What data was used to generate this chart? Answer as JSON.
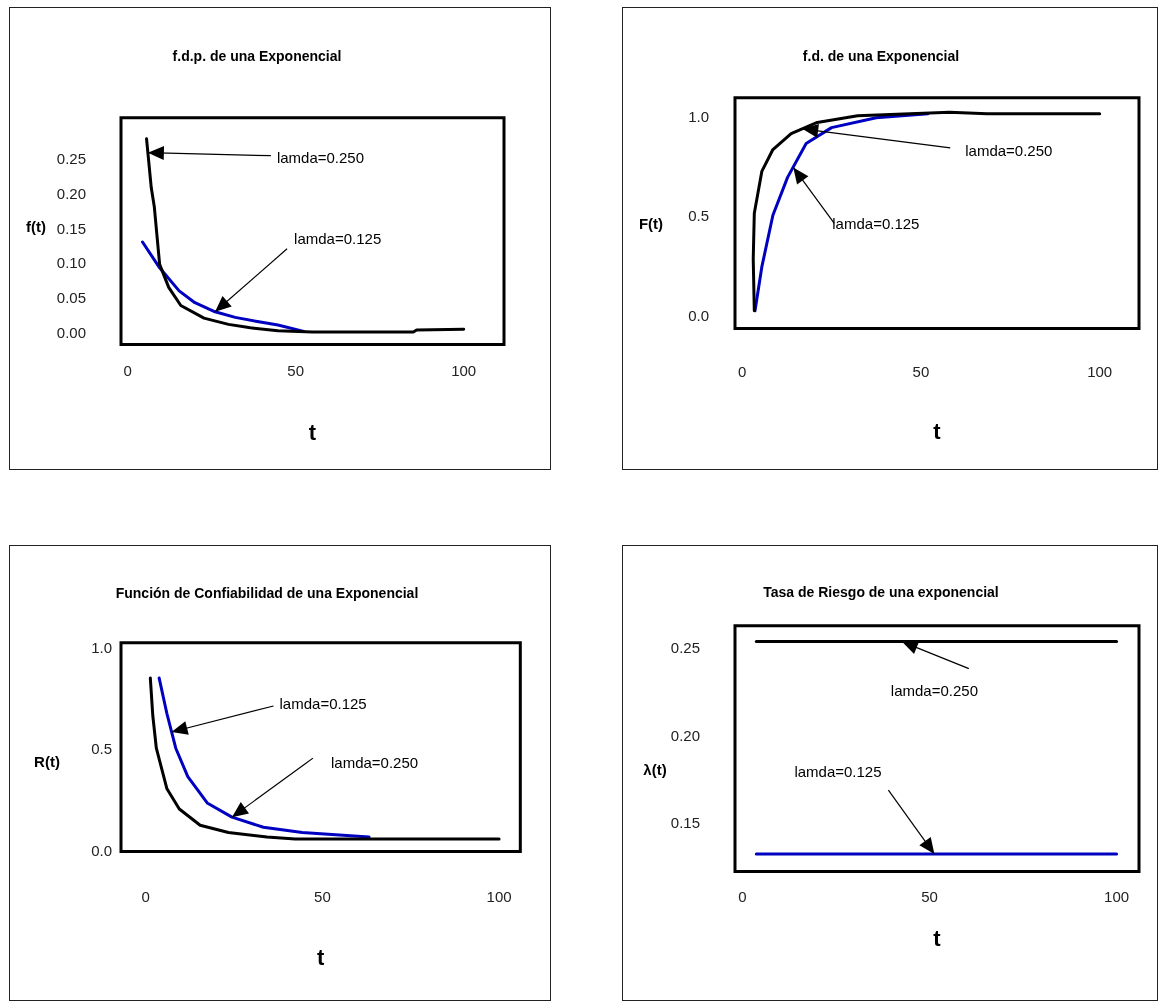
{
  "chart_data": [
    {
      "type": "line",
      "title": "f.d.p. de una Exponencial",
      "xlabel": "t",
      "ylabel": "f(t)",
      "xlim": [
        -2,
        112
      ],
      "ylim": [
        -0.015,
        0.31
      ],
      "xticks": [
        0,
        50,
        100
      ],
      "yticks": [
        {
          "value": 0,
          "label": "0.00"
        },
        0.05,
        {
          "value": 0.1,
          "label": "0.10"
        },
        0.15,
        {
          "value": 0.2,
          "label": "0.20"
        },
        0.25
      ],
      "series": [
        {
          "color": "#000000",
          "x": [
            5.6,
            6,
            7,
            7.9,
            9.5,
            12.2,
            15.8,
            22.7,
            30,
            36.5,
            44.7,
            55,
            85,
            86,
            100
          ],
          "values": [
            0.28,
            0.26,
            0.21,
            0.183,
            0.1,
            0.067,
            0.041,
            0.023,
            0.014,
            0.009,
            0.005,
            0.003,
            0.003,
            0.006,
            0.007
          ]
        },
        {
          "color": "#0000c0",
          "x": [
            4.4,
            9.5,
            15.3,
            20,
            26,
            32,
            38.6,
            44.7,
            52.4
          ],
          "values": [
            0.132,
            0.095,
            0.062,
            0.045,
            0.032,
            0.024,
            0.018,
            0.013,
            0.004
          ]
        }
      ],
      "annotations": [
        {
          "text": "lamda=0.250",
          "x": 6,
          "y": 0.26
        },
        {
          "text": "lamda=0.125",
          "x": 26,
          "y": 0.032
        }
      ]
    },
    {
      "type": "line",
      "title": "f.d. de una Exponencial",
      "xlabel": "t",
      "ylabel": "F(t)",
      "xlim": [
        -2,
        111
      ],
      "ylim": [
        -0.06,
        1.1
      ],
      "xticks": [
        0,
        50,
        100
      ],
      "yticks": [
        {
          "value": 0,
          "label": "0.0"
        },
        0.5,
        {
          "value": 1,
          "label": "1.0"
        }
      ],
      "series": [
        {
          "color": "#000000",
          "x": [
            3.4,
            3.1,
            3.4,
            5.5,
            8.6,
            13.7,
            21,
            32.3,
            58,
            68.5,
            100
          ],
          "values": [
            0.03,
            0.29,
            0.52,
            0.73,
            0.84,
            0.92,
            0.976,
            1.01,
            1.027,
            1.02,
            1.02
          ]
        },
        {
          "color": "#0000c0",
          "x": [
            3.6,
            5.5,
            8.6,
            12.7,
            17.9,
            25,
            37.5,
            52
          ],
          "values": [
            0.03,
            0.25,
            0.51,
            0.7,
            0.87,
            0.95,
            1.0,
            1.02
          ]
        }
      ],
      "annotations": [
        {
          "text": "lamda=0.250",
          "x": 16.8,
          "y": 0.944
        },
        {
          "text": "lamda=0.125",
          "x": 14.3,
          "y": 0.75
        }
      ]
    },
    {
      "type": "line",
      "title": "Función de Confiabilidad de una Exponencial",
      "xlabel": "t",
      "ylabel": "R(t)",
      "xlim": [
        -7,
        106
      ],
      "ylim": [
        0,
        1.03
      ],
      "xticks": [
        0,
        50,
        100
      ],
      "yticks": [
        {
          "value": 0,
          "label": "0.0"
        },
        0.5,
        {
          "value": 1,
          "label": "1.0"
        }
      ],
      "series": [
        {
          "color": "#000000",
          "x": [
            1.3,
            2,
            3,
            6,
            9.5,
            15.4,
            23.4,
            34.3,
            42.3,
            100
          ],
          "values": [
            0.856,
            0.67,
            0.51,
            0.31,
            0.21,
            0.13,
            0.094,
            0.072,
            0.062,
            0.062
          ]
        },
        {
          "color": "#0000c0",
          "x": [
            3.8,
            6,
            8.5,
            11.9,
            17.4,
            24.4,
            33.3,
            44.3,
            63.2
          ],
          "values": [
            0.856,
            0.68,
            0.51,
            0.37,
            0.24,
            0.17,
            0.12,
            0.094,
            0.072
          ]
        }
      ],
      "annotations": [
        {
          "text": "lamda=0.125",
          "x": 7.3,
          "y": 0.59
        },
        {
          "text": "lamda=0.250",
          "x": 24.4,
          "y": 0.17
        }
      ]
    },
    {
      "type": "line",
      "title": "Tasa de Riesgo de una exponencial",
      "xlabel": "t",
      "ylabel": "λ(t)",
      "xlim": [
        -2,
        106
      ],
      "ylim": [
        0.123,
        0.263
      ],
      "xticks": [
        0,
        50,
        100
      ],
      "yticks": [
        0.15,
        {
          "value": 0.2,
          "label": "0.20"
        },
        0.25
      ],
      "series": [
        {
          "color": "#000000",
          "x": [
            3.7,
            100
          ],
          "values": [
            0.254,
            0.254
          ]
        },
        {
          "color": "#0000c0",
          "x": [
            3.7,
            100
          ],
          "values": [
            0.133,
            0.133
          ]
        }
      ],
      "annotations": [
        {
          "text": "lamda=0.250",
          "x": 42.6,
          "y": 0.254
        },
        {
          "text": "lamda=0.125",
          "x": 51.3,
          "y": 0.133
        }
      ]
    }
  ]
}
